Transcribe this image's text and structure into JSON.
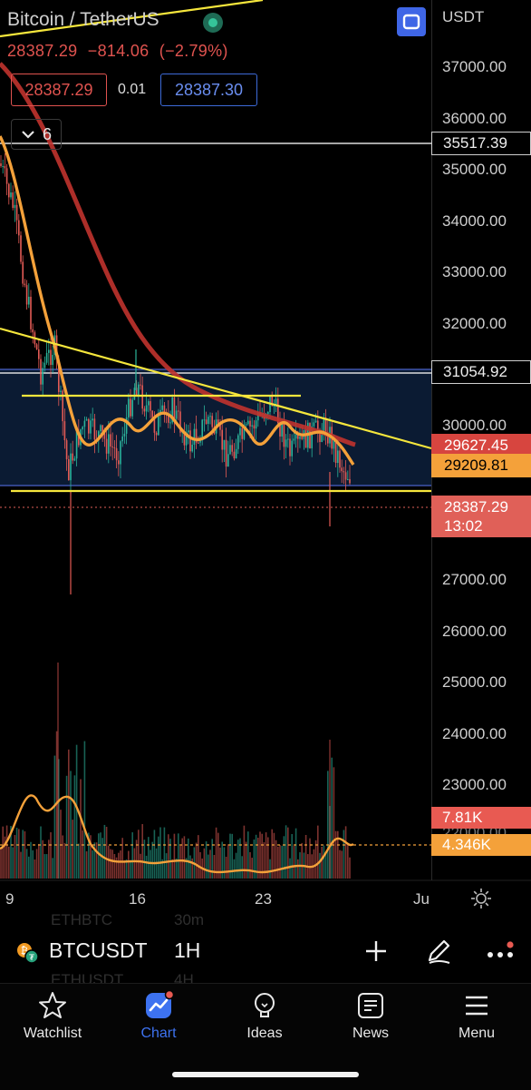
{
  "header": {
    "symbol_title": "Bitcoin / TetherUS",
    "last_price": "28387.29",
    "change": "−814.06",
    "change_pct": "(−2.79%)",
    "bid": "28387.29",
    "spread": "0.01",
    "ask": "28387.30",
    "indicator_count": "6"
  },
  "price_axis": {
    "currency": "USDT",
    "ticks": [
      "37000.00",
      "36000.00",
      "35000.00",
      "34000.00",
      "33000.00",
      "32000.00",
      "30000.00",
      "27000.00",
      "26000.00",
      "25000.00",
      "24000.00",
      "23000.00",
      "22000.00"
    ]
  },
  "price_labels": {
    "line_top": "35517.39",
    "line_mid": "31054.92",
    "ma_red": "29627.45",
    "ma_orange": "29209.81",
    "current_price": "28387.29",
    "countdown": "13:02"
  },
  "volume_labels": {
    "volume": "7.81K",
    "volume_ma": "4.346K"
  },
  "time_axis": [
    "9",
    "16",
    "23",
    "Ju"
  ],
  "ghost_rows": [
    "ETHBTC",
    "30m",
    "ETHUSDT",
    "4H"
  ],
  "symbol_bar": {
    "symbol": "BTCUSDT",
    "interval": "1H"
  },
  "nav": [
    {
      "label": "Watchlist",
      "icon": "star-icon"
    },
    {
      "label": "Chart",
      "icon": "chart-icon"
    },
    {
      "label": "Ideas",
      "icon": "lightbulb-icon"
    },
    {
      "label": "News",
      "icon": "newspaper-icon"
    },
    {
      "label": "Menu",
      "icon": "hamburger-icon"
    }
  ],
  "colors": {
    "candle_up": "#2bb39a",
    "candle_down": "#e35b55",
    "ma_slow": "#c0332d",
    "ma_fast": "#f4a13a",
    "trendline": "#f5e63c",
    "range_box": "#0b1b33",
    "accent_blue": "#3d72f0"
  }
}
